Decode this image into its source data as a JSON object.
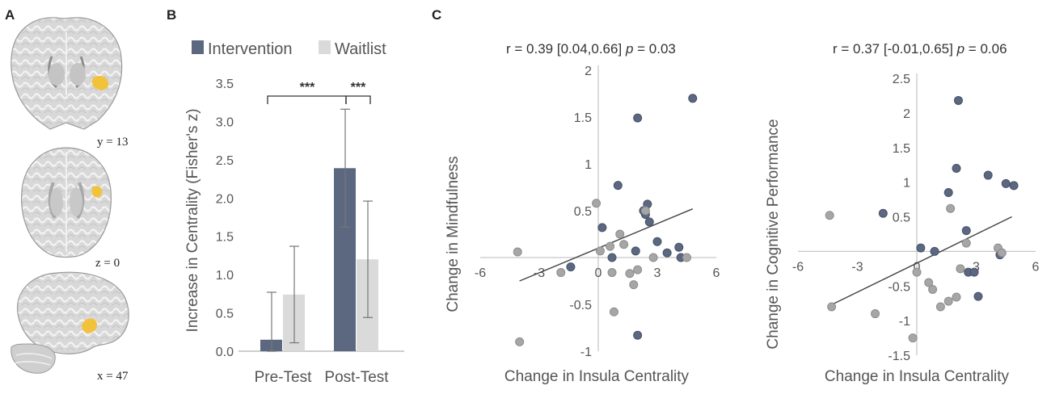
{
  "panels": {
    "a": "A",
    "b": "B",
    "c": "C"
  },
  "brain_labels": [
    "y = 13",
    "z = 0",
    "x = 47"
  ],
  "colors": {
    "intervention": "#5b6880",
    "waitlist": "#dadada",
    "dot_intervention": "#5b6880",
    "dot_waitlist": "#a6a6a6",
    "highlight": "#f2c23a"
  },
  "chart_data": [
    {
      "type": "bar",
      "categories": [
        "Pre-Test",
        "Post-Test"
      ],
      "series": [
        {
          "name": "Intervention",
          "values": [
            0.15,
            2.39
          ],
          "error": [
            0.62,
            0.77
          ]
        },
        {
          "name": "Waitlist",
          "values": [
            0.74,
            1.2
          ],
          "error": [
            0.63,
            0.76
          ]
        }
      ],
      "xlabel": "",
      "ylabel": "Increase in Centrality (Fisher's z)",
      "ylim": [
        0,
        3.5
      ],
      "yticks": [
        "0.0",
        "0.5",
        "1.0",
        "1.5",
        "2.0",
        "2.5",
        "3.0",
        "3.5"
      ],
      "significance": [
        "***",
        "***"
      ],
      "legend_position": "top"
    },
    {
      "type": "scatter",
      "title": "r = 0.39  [0.04,0.66]",
      "p_label": "p",
      "p_value": "= 0.03",
      "xlabel": "Change in Insula Centrality",
      "ylabel": "Change in Mindfulness",
      "xlim": [
        -6,
        6
      ],
      "ylim": [
        -1,
        2
      ],
      "xticks": [
        "-6",
        "-3",
        "0",
        "3",
        "6"
      ],
      "yticks": [
        "-1",
        "-0.5",
        "0.5",
        "1",
        "1.5",
        "2"
      ],
      "regression": {
        "x1": -4,
        "y1": -0.25,
        "x2": 4.8,
        "y2": 0.52
      },
      "series": [
        {
          "name": "Intervention",
          "x": [
            -1.4,
            0.2,
            0.7,
            1.0,
            2.0,
            2.5,
            2.6,
            2.4,
            2.3,
            3.0,
            3.5,
            4.1,
            4.2,
            4.8,
            2.0,
            1.9
          ],
          "y": [
            -0.1,
            0.32,
            0.0,
            0.77,
            1.49,
            0.57,
            0.38,
            0.46,
            0.5,
            0.17,
            0.05,
            0.11,
            0.0,
            1.7,
            -0.83,
            0.07
          ]
        },
        {
          "name": "Waitlist",
          "x": [
            -4.1,
            -4.0,
            -1.9,
            -0.1,
            0.1,
            0.6,
            0.7,
            1.1,
            1.3,
            1.6,
            1.8,
            2.0,
            2.4,
            2.8,
            4.5,
            0.8
          ],
          "y": [
            0.06,
            -0.9,
            -0.16,
            0.58,
            0.07,
            0.12,
            -0.16,
            0.25,
            0.14,
            -0.17,
            -0.29,
            -0.13,
            0.5,
            0.0,
            0.0,
            -0.58
          ]
        }
      ]
    },
    {
      "type": "scatter",
      "title": "r = 0.37 [-0.01,0.65]",
      "p_label": "p",
      "p_value": "= 0.06",
      "xlabel": "Change in Insula Centrality",
      "ylabel": "Change in Cognitive Performance",
      "xlim": [
        -6,
        6
      ],
      "ylim": [
        -1.5,
        2.5
      ],
      "xticks": [
        "-6",
        "-3",
        "0",
        "3",
        "6"
      ],
      "yticks": [
        "-1.5",
        "-1",
        "-0.5",
        "0.5",
        "1",
        "1.5",
        "2",
        "2.5"
      ],
      "regression": {
        "x1": -4.3,
        "y1": -0.77,
        "x2": 4.8,
        "y2": 0.5
      },
      "series": [
        {
          "name": "Intervention",
          "x": [
            -1.7,
            0.2,
            0.9,
            1.6,
            2.0,
            2.1,
            2.5,
            2.6,
            2.9,
            3.1,
            3.6,
            4.2,
            4.5,
            4.9
          ],
          "y": [
            0.55,
            0.05,
            0.0,
            0.85,
            1.2,
            2.18,
            0.3,
            -0.3,
            -0.3,
            -0.65,
            1.1,
            -0.05,
            0.98,
            0.95
          ]
        },
        {
          "name": "Waitlist",
          "x": [
            -4.4,
            -4.3,
            -2.1,
            -0.2,
            0.0,
            0.6,
            0.8,
            1.2,
            1.6,
            1.7,
            2.0,
            2.2,
            2.5,
            4.1,
            4.3
          ],
          "y": [
            0.52,
            -0.8,
            -0.9,
            -1.25,
            -0.3,
            -0.45,
            -0.55,
            -0.8,
            -0.72,
            0.62,
            -0.66,
            -0.25,
            0.12,
            0.05,
            -0.02
          ]
        }
      ]
    }
  ]
}
